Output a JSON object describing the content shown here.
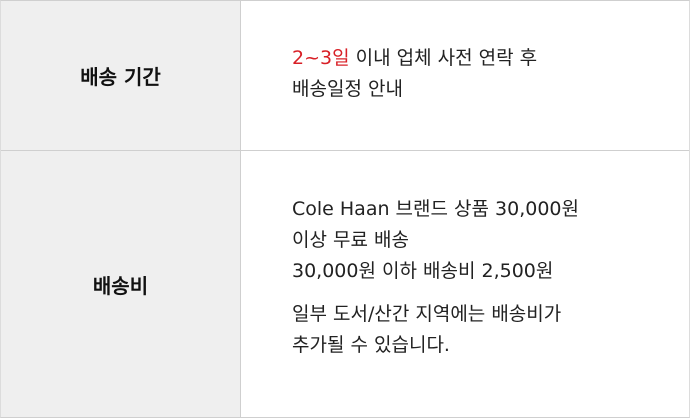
{
  "colors": {
    "accent": "#d81f26",
    "header_bg": "#efefef",
    "border": "#cfcfcf"
  },
  "shipping_period": {
    "label": "배송 기간",
    "highlight": "2~3일",
    "line1_rest": " 이내 업체 사전 연락 후",
    "line2": "배송일정 안내"
  },
  "shipping_fee": {
    "label": "배송비",
    "lines": [
      "Cole Haan 브랜드 상품 30,000원",
      "이상 무료 배송",
      "30,000원 이하 배송비 2,500원"
    ],
    "note_lines": [
      "일부 도서/산간 지역에는 배송비가",
      "추가될 수 있습니다."
    ]
  }
}
